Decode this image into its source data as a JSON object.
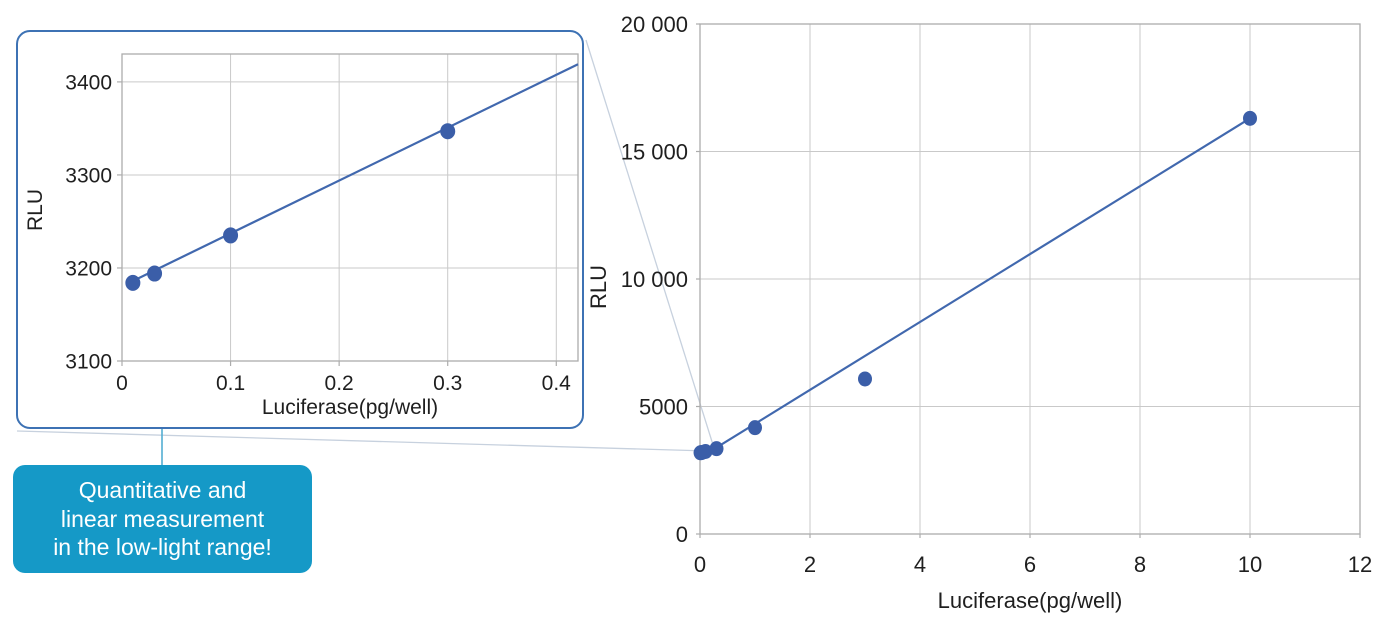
{
  "figure": {
    "callout": {
      "line1": "Quantitative and",
      "line2": "linear measurement",
      "line3": "in the low-light range!"
    },
    "colors": {
      "series_point": "#3B5EA8",
      "trend_line": "#4168AE",
      "gridline": "#C9C9C9",
      "axis_border": "#ACACAC",
      "tick_text": "#1F1F1F",
      "inset_border": "#3D72B4",
      "callout_background": "#1599C7",
      "callout_text": "#FFFFFF",
      "connector_line": "#C7D1DE",
      "arrow": "#53AED2"
    }
  },
  "chart_data": [
    {
      "id": "main",
      "type": "scatter",
      "title": "",
      "xlabel": "Luciferase(pg/well)",
      "ylabel": "RLU",
      "xlim": [
        0,
        12
      ],
      "ylim": [
        0,
        20000
      ],
      "xticks": [
        0,
        2,
        4,
        6,
        8,
        10,
        12
      ],
      "xtick_labels": [
        "0",
        "2",
        "4",
        "6",
        "8",
        "10",
        "12"
      ],
      "yticks": [
        0,
        5000,
        10000,
        15000,
        20000
      ],
      "ytick_labels": [
        "0",
        "5000",
        "10 000",
        "15 000",
        "20 000"
      ],
      "grid": true,
      "legend": "none",
      "points": [
        [
          0.01,
          3184
        ],
        [
          0.03,
          3194
        ],
        [
          0.1,
          3235
        ],
        [
          0.3,
          3347
        ],
        [
          1,
          4170
        ],
        [
          3,
          6080
        ],
        [
          10,
          16300
        ]
      ],
      "trendline": {
        "x": [
          0.27,
          10
        ],
        "y": [
          3350,
          16300
        ]
      }
    },
    {
      "id": "inset",
      "type": "scatter",
      "title": "",
      "xlabel": "Luciferase(pg/well)",
      "ylabel": "RLU",
      "xlim": [
        0,
        0.42
      ],
      "ylim": [
        3100,
        3430
      ],
      "xticks": [
        0,
        0.1,
        0.2,
        0.3,
        0.4
      ],
      "xtick_labels": [
        "0",
        "0.1",
        "0.2",
        "0.3",
        "0.4"
      ],
      "yticks": [
        3100,
        3200,
        3300,
        3400
      ],
      "ytick_labels": [
        "3100",
        "3200",
        "3300",
        "3400"
      ],
      "grid": true,
      "legend": "none",
      "points": [
        [
          0.01,
          3184
        ],
        [
          0.03,
          3194
        ],
        [
          0.1,
          3235
        ],
        [
          0.3,
          3347
        ]
      ],
      "trendline": {
        "x": [
          0.01,
          0.42
        ],
        "y": [
          3186,
          3419
        ]
      }
    }
  ]
}
